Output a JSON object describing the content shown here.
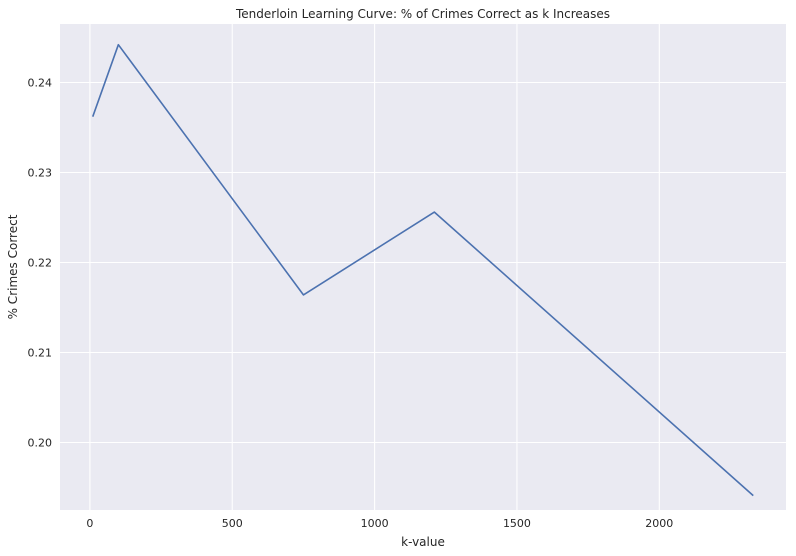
{
  "chart_data": {
    "type": "line",
    "title": "Tenderloin Learning Curve: % of Crimes Correct as k Increases",
    "xlabel": "k-value",
    "ylabel": "% Crimes Correct",
    "xlim": [
      -105,
      2445
    ],
    "ylim": [
      0.1925,
      0.2465
    ],
    "xticks": [
      0,
      500,
      1000,
      1500,
      2000
    ],
    "xtick_labels": [
      "0",
      "500",
      "1000",
      "1500",
      "2000"
    ],
    "yticks": [
      0.2,
      0.21,
      0.22,
      0.23,
      0.24
    ],
    "ytick_labels": [
      "0.20",
      "0.21",
      "0.22",
      "0.23",
      "0.24"
    ],
    "grid": true,
    "legend": "none",
    "series": [
      {
        "color": "#4c72b0",
        "x": [
          10,
          100,
          750,
          1210,
          2330
        ],
        "y": [
          0.2362,
          0.2442,
          0.2164,
          0.2256,
          0.1941
        ]
      }
    ],
    "colors": {
      "background": "#eaeaf2",
      "grid": "#ffffff",
      "line": "#4c72b0"
    }
  }
}
